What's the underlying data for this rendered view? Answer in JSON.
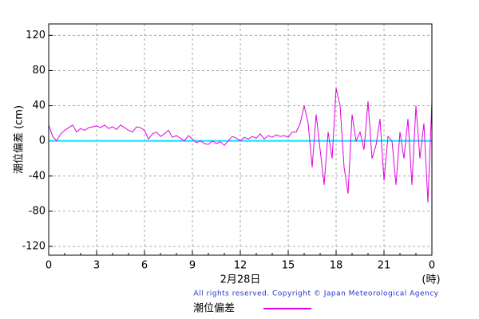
{
  "chart_data": {
    "type": "line",
    "ylabel": "潮位偏差 (cm)",
    "xlabel": "2月28日",
    "xunit": "(時)",
    "copyright": "All rights reserved. Copyright © Japan Meteorological Agency",
    "xlim": [
      0,
      24
    ],
    "ylim": [
      -130,
      133
    ],
    "xticks": [
      0,
      3,
      6,
      9,
      12,
      15,
      18,
      21,
      {
        "value": 24,
        "label": "0"
      }
    ],
    "xminor": [
      1,
      2,
      4,
      5,
      7,
      8,
      10,
      11,
      13,
      14,
      16,
      17,
      19,
      20,
      22,
      23
    ],
    "yticks": [
      -120,
      -80,
      -40,
      0,
      40,
      80,
      120
    ],
    "grid": true,
    "zero_line_color": "#00e5ff",
    "series": [
      {
        "name": "潮位偏差",
        "color": "#e000e0",
        "x": [
          0,
          0.25,
          0.5,
          0.75,
          1,
          1.25,
          1.5,
          1.75,
          2,
          2.25,
          2.5,
          2.75,
          3,
          3.25,
          3.5,
          3.75,
          4,
          4.25,
          4.5,
          4.75,
          5,
          5.25,
          5.5,
          5.75,
          6,
          6.25,
          6.5,
          6.75,
          7,
          7.25,
          7.5,
          7.75,
          8,
          8.25,
          8.5,
          8.75,
          9,
          9.25,
          9.5,
          9.75,
          10,
          10.25,
          10.5,
          10.75,
          11,
          11.25,
          11.5,
          11.75,
          12,
          12.25,
          12.5,
          12.75,
          13,
          13.25,
          13.5,
          13.75,
          14,
          14.25,
          14.5,
          14.75,
          15,
          15.25,
          15.5,
          15.75,
          16,
          16.25,
          16.5,
          16.75,
          17,
          17.25,
          17.5,
          17.75,
          18,
          18.25,
          18.5,
          18.75,
          19,
          19.25,
          19.5,
          19.75,
          20,
          20.25,
          20.5,
          20.75,
          21,
          21.25,
          21.5,
          21.75,
          22,
          22.25,
          22.5,
          22.75,
          23,
          23.25,
          23.5,
          23.75,
          24
        ],
        "values": [
          18,
          5,
          0,
          8,
          12,
          15,
          18,
          10,
          14,
          12,
          15,
          16,
          17,
          15,
          18,
          14,
          16,
          13,
          18,
          15,
          12,
          10,
          16,
          15,
          12,
          2,
          8,
          10,
          5,
          8,
          12,
          4,
          6,
          3,
          0,
          6,
          2,
          -2,
          0,
          -3,
          -4,
          0,
          -3,
          -1,
          -5,
          0,
          5,
          3,
          0,
          4,
          2,
          5,
          3,
          8,
          2,
          6,
          4,
          7,
          5,
          6,
          4,
          10,
          10,
          20,
          40,
          20,
          -30,
          30,
          -10,
          -50,
          10,
          -20,
          60,
          40,
          -30,
          -60,
          30,
          0,
          10,
          -10,
          45,
          -20,
          -5,
          25,
          -45,
          5,
          0,
          -50,
          10,
          -20,
          25,
          -50,
          40,
          -20,
          20,
          -70,
          45
        ]
      }
    ]
  }
}
